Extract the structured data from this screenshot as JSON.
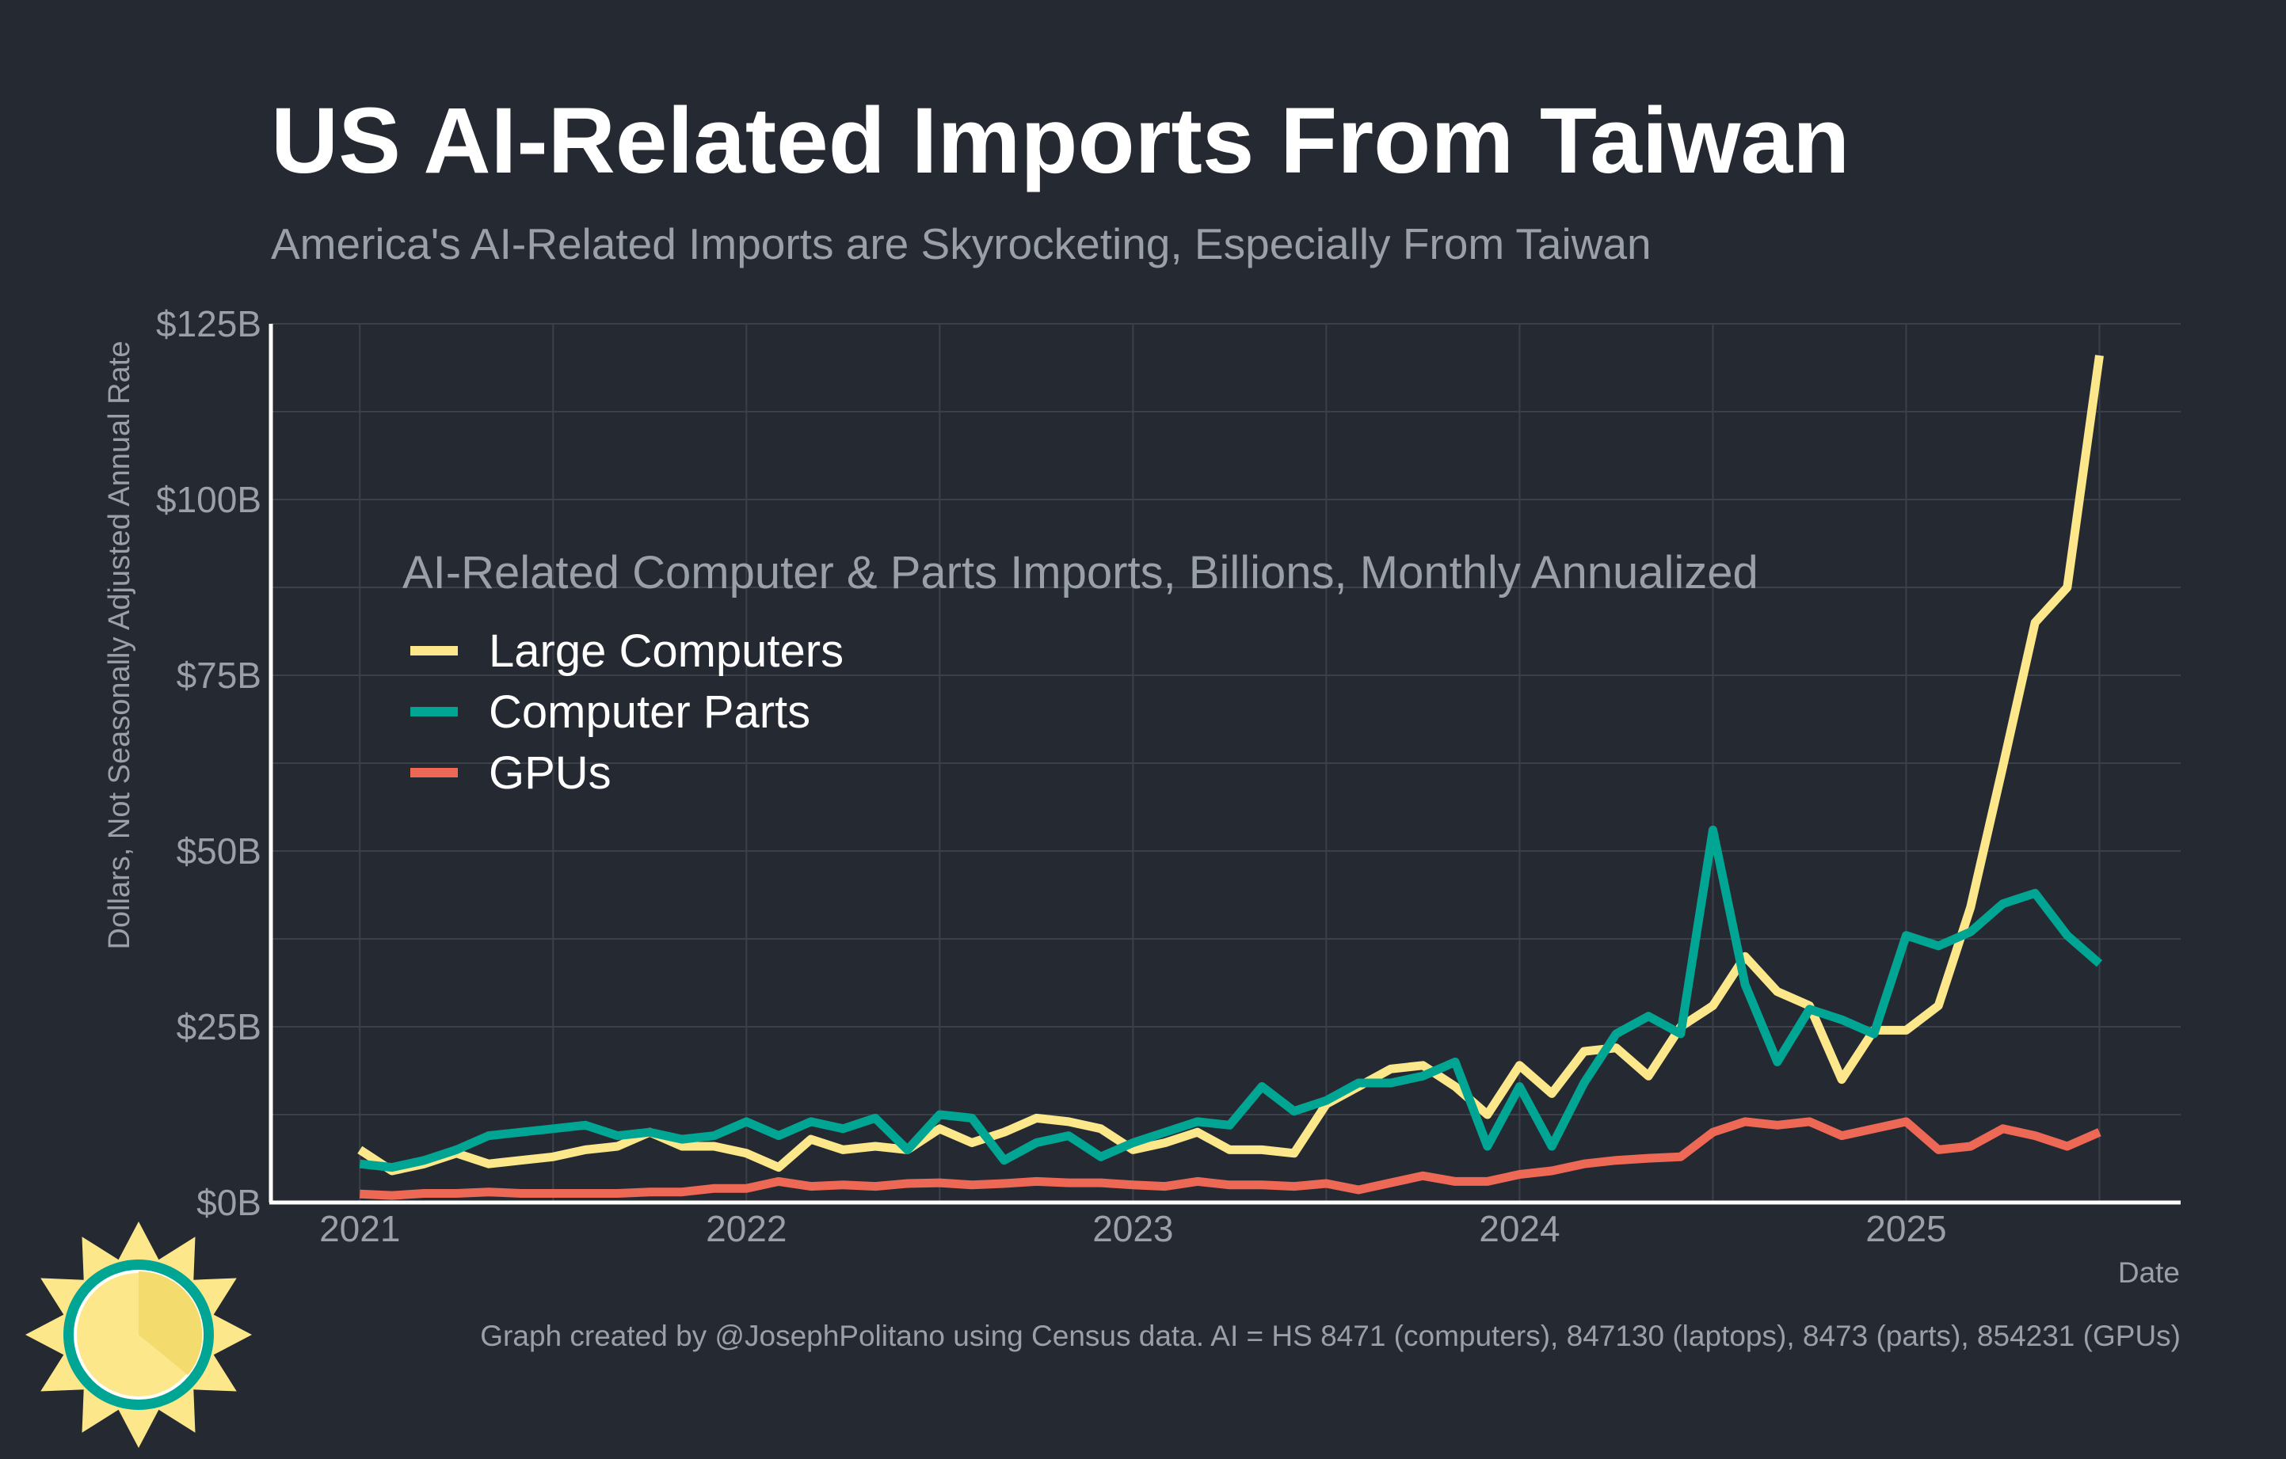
{
  "chart_data": {
    "type": "line",
    "title": "US AI-Related Imports From Taiwan",
    "subtitle": "America's AI-Related Imports are Skyrocketing, Especially From Taiwan",
    "xlabel": "Date",
    "ylabel": "Dollars, Not Seasonally Adjusted Annual Rate",
    "ylim": [
      0,
      125
    ],
    "xlim": [
      2020.77,
      2025.71
    ],
    "x_ticks": [
      2021,
      2022,
      2023,
      2024,
      2025
    ],
    "x_tick_labels": [
      "2021",
      "2022",
      "2023",
      "2024",
      "2025"
    ],
    "y_ticks": [
      0,
      25,
      50,
      75,
      100,
      125
    ],
    "y_tick_labels": [
      "$0B",
      "$25B",
      "$50B",
      "$75B",
      "$100B",
      "$125B"
    ],
    "grid": true,
    "legend_title": "AI-Related Computer & Parts Imports, Billions, Monthly Annualized",
    "legend_position": "top-left",
    "x": [
      "2021-01",
      "2021-02",
      "2021-03",
      "2021-04",
      "2021-05",
      "2021-06",
      "2021-07",
      "2021-08",
      "2021-09",
      "2021-10",
      "2021-11",
      "2021-12",
      "2022-01",
      "2022-02",
      "2022-03",
      "2022-04",
      "2022-05",
      "2022-06",
      "2022-07",
      "2022-08",
      "2022-09",
      "2022-10",
      "2022-11",
      "2022-12",
      "2023-01",
      "2023-02",
      "2023-03",
      "2023-04",
      "2023-05",
      "2023-06",
      "2023-07",
      "2023-08",
      "2023-09",
      "2023-10",
      "2023-11",
      "2023-12",
      "2024-01",
      "2024-02",
      "2024-03",
      "2024-04",
      "2024-05",
      "2024-06",
      "2024-07",
      "2024-08",
      "2024-09",
      "2024-10",
      "2024-11",
      "2024-12",
      "2025-01",
      "2025-02",
      "2025-03",
      "2025-04",
      "2025-05",
      "2025-06",
      "2025-07"
    ],
    "series": [
      {
        "name": "Large Computers",
        "color": "#fce78a",
        "values": [
          7.5,
          4.5,
          5.5,
          7,
          5.5,
          6,
          6.5,
          7.5,
          8,
          10,
          8,
          8,
          7,
          5,
          9,
          7.5,
          8,
          7.5,
          10.5,
          8.5,
          10,
          12,
          11.5,
          10.5,
          7.5,
          8.5,
          10,
          7.5,
          7.5,
          7,
          14,
          16.5,
          19,
          19.5,
          16.5,
          12.5,
          19.5,
          15.5,
          21.5,
          22,
          18,
          25,
          28,
          35,
          30,
          28,
          17.5,
          24.5,
          24.5,
          28,
          42,
          62,
          82.5,
          87.5,
          120.5
        ]
      },
      {
        "name": "Computer Parts",
        "color": "#00a693",
        "values": [
          5.5,
          5,
          6,
          7.5,
          9.5,
          10,
          10.5,
          11,
          9.5,
          10,
          9,
          9.5,
          11.5,
          9.5,
          11.5,
          10.5,
          12,
          7.5,
          12.5,
          12,
          6,
          8.5,
          9.5,
          6.5,
          8.5,
          10,
          11.5,
          11,
          16.5,
          13,
          14.5,
          17,
          17,
          18,
          20,
          8,
          16.5,
          8,
          17,
          24,
          26.5,
          24,
          53,
          31,
          20,
          27.5,
          26,
          24,
          38,
          36.5,
          38.5,
          42.5,
          44,
          38,
          34
        ]
      },
      {
        "name": "GPUs",
        "color": "#ee6856",
        "values": [
          1.2,
          1,
          1.3,
          1.3,
          1.5,
          1.3,
          1.3,
          1.3,
          1.3,
          1.5,
          1.5,
          2,
          2,
          3,
          2.3,
          2.5,
          2.3,
          2.7,
          2.8,
          2.5,
          2.7,
          3,
          2.8,
          2.8,
          2.5,
          2.3,
          3,
          2.5,
          2.5,
          2.3,
          2.7,
          1.8,
          2.8,
          3.8,
          3,
          3,
          4,
          4.5,
          5.5,
          6,
          6.3,
          6.5,
          10,
          11.5,
          11,
          11.5,
          9.5,
          10.5,
          11.5,
          7.5,
          8,
          10.5,
          9.5,
          8,
          10
        ]
      }
    ]
  },
  "footer": {
    "credit": "Graph created by @JosephPolitano using Census data. AI = HS 8471 (computers), 847130 (laptops), 8473 (parts), 854231 (GPUs)"
  },
  "logo": {
    "icon": "sun-logo-icon",
    "colors": {
      "sun": "#fce78a",
      "ring": "#00a693",
      "rays": "#fce78a"
    }
  }
}
